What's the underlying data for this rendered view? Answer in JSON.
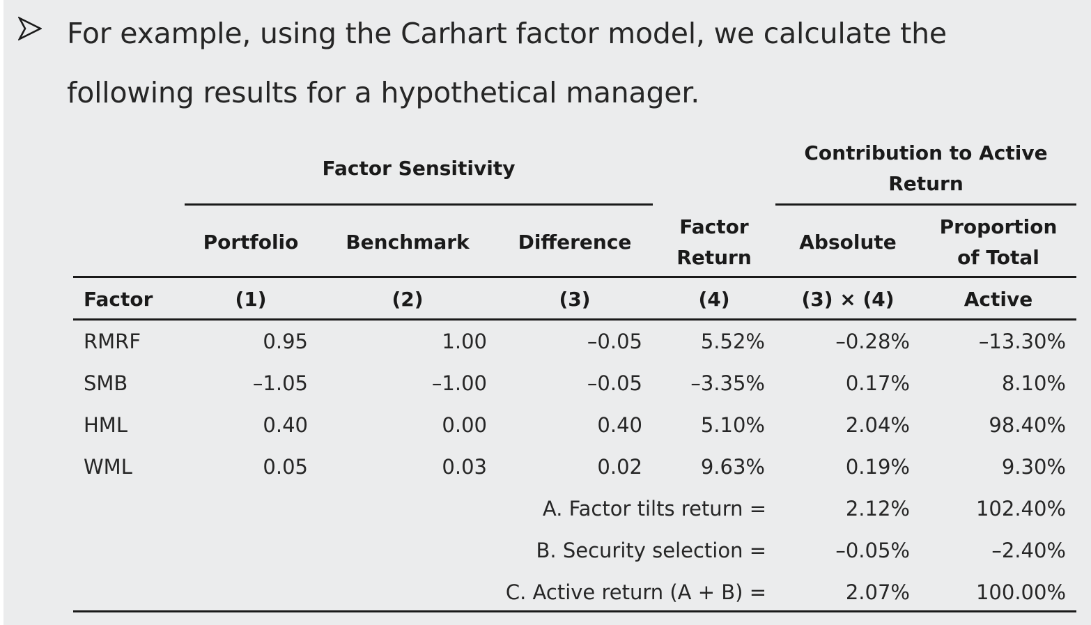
{
  "intro": {
    "bullet_icon": "arrowhead-bullet-icon",
    "text": "For example, using the Carhart factor model, we calculate the following results for a hypothetical manager."
  },
  "table": {
    "group_headers": {
      "factor_sensitivity": "Factor Sensitivity",
      "contribution": "Contribution to Active Return"
    },
    "column_headers": {
      "portfolio": "Portfolio",
      "benchmark": "Benchmark",
      "difference": "Difference",
      "factor_return": "Factor Return",
      "absolute": "Absolute",
      "proportion": "Proportion of Total"
    },
    "subheaders": {
      "factor": "Factor",
      "c1": "(1)",
      "c2": "(2)",
      "c3": "(3)",
      "c4": "(4)",
      "c5": "(3) × (4)",
      "c6": "Active"
    },
    "rows": [
      {
        "factor": "RMRF",
        "portfolio": "0.95",
        "benchmark": "1.00",
        "difference": "–0.05",
        "factor_return": "5.52%",
        "absolute": "–0.28%",
        "proportion": "–13.30%"
      },
      {
        "factor": "SMB",
        "portfolio": "–1.05",
        "benchmark": "–1.00",
        "difference": "–0.05",
        "factor_return": "–3.35%",
        "absolute": "0.17%",
        "proportion": "8.10%"
      },
      {
        "factor": "HML",
        "portfolio": "0.40",
        "benchmark": "0.00",
        "difference": "0.40",
        "factor_return": "5.10%",
        "absolute": "2.04%",
        "proportion": "98.40%"
      },
      {
        "factor": "WML",
        "portfolio": "0.05",
        "benchmark": "0.03",
        "difference": "0.02",
        "factor_return": "9.63%",
        "absolute": "0.19%",
        "proportion": "9.30%"
      }
    ],
    "summary": [
      {
        "label": "A. Factor tilts return =",
        "absolute": "2.12%",
        "proportion": "102.40%"
      },
      {
        "label": "B. Security selection =",
        "absolute": "–0.05%",
        "proportion": "–2.40%"
      },
      {
        "label": "C. Active return (A + B) =",
        "absolute": "2.07%",
        "proportion": "100.00%"
      }
    ]
  }
}
